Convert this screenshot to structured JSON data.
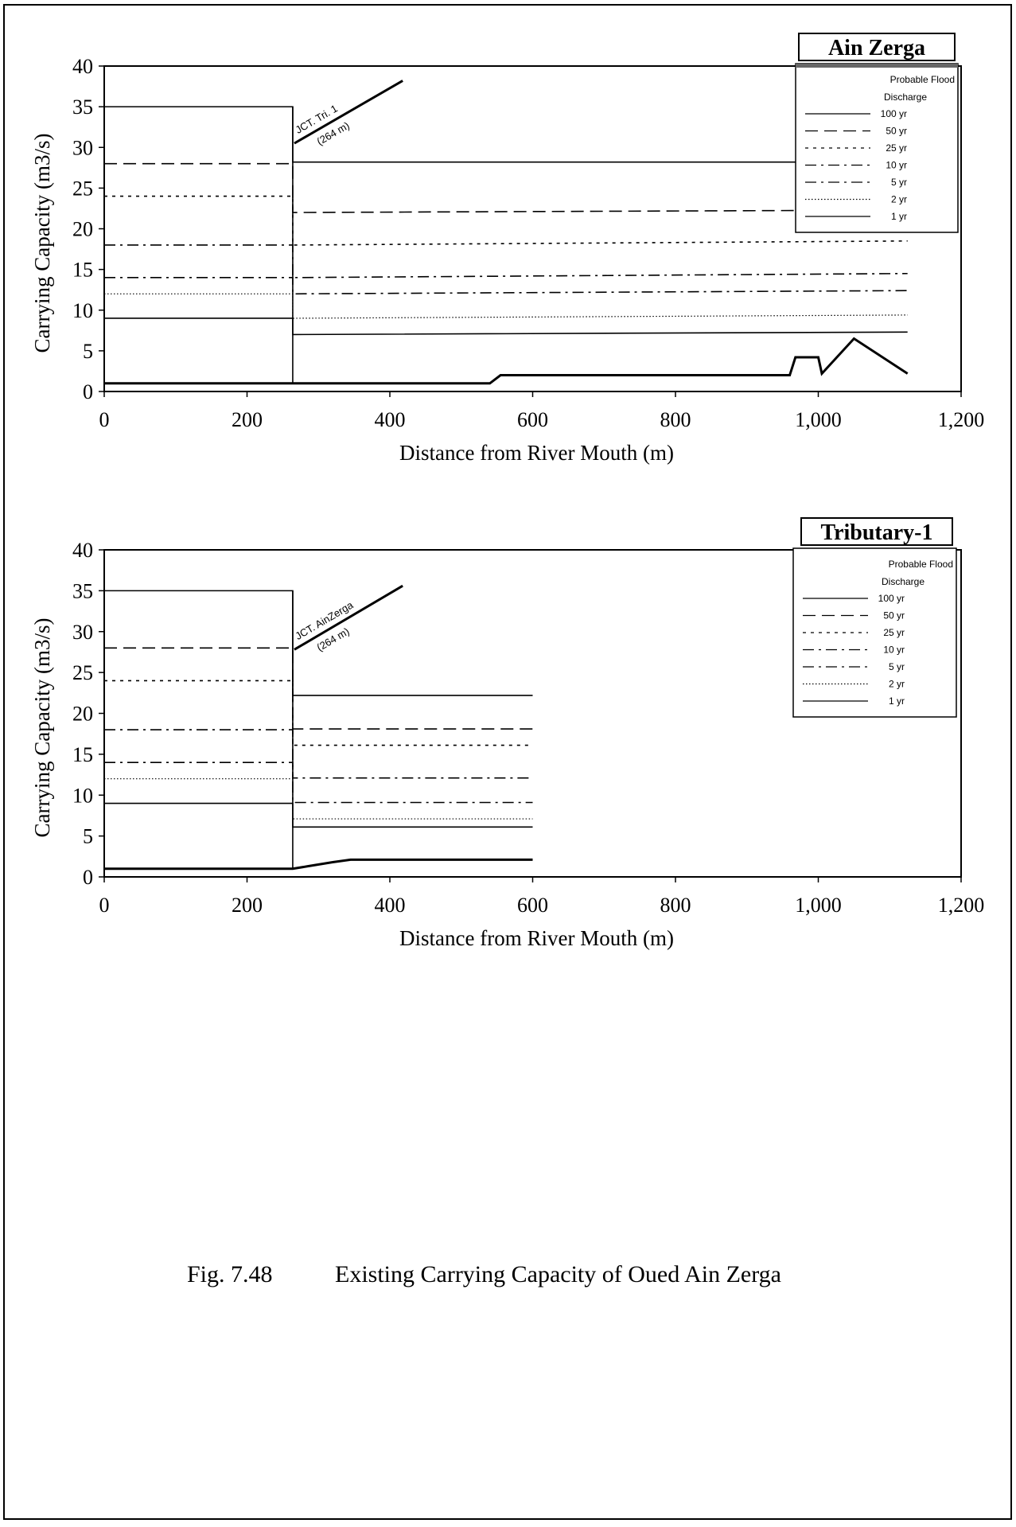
{
  "figure_caption": {
    "number": "Fig. 7.48",
    "text": "Existing Carrying Capacity of Oued Ain Zerga"
  },
  "chart_data": [
    {
      "type": "line",
      "title": "Ain Zerga",
      "xlabel": "Distance from River Mouth (m)",
      "ylabel": "Carrying Capacity (m3/s)",
      "xlim": [
        0,
        1200
      ],
      "ylim": [
        0,
        40
      ],
      "x_ticks": [
        "0",
        "200",
        "400",
        "600",
        "800",
        "1,000",
        "1,200"
      ],
      "y_ticks": [
        "0",
        "5",
        "10",
        "15",
        "20",
        "25",
        "30",
        "35",
        "40"
      ],
      "grid": false,
      "legend_title": [
        "Probable Flood",
        "Discharge"
      ],
      "legend_position": "top-right",
      "annotation": [
        "JCT. Tri. 1",
        "(264 m)"
      ],
      "series": [
        {
          "name": "100 yr",
          "style": "solid",
          "points": [
            [
              0,
              35
            ],
            [
              264,
              35
            ],
            [
              264,
              28.2
            ],
            [
              1125,
              28.2
            ]
          ]
        },
        {
          "name": "50 yr",
          "style": "dash",
          "points": [
            [
              0,
              28
            ],
            [
              264,
              28
            ],
            [
              264,
              22
            ],
            [
              1125,
              22.3
            ]
          ]
        },
        {
          "name": "25 yr",
          "style": "dot",
          "points": [
            [
              0,
              24
            ],
            [
              264,
              24
            ],
            [
              264,
              18
            ],
            [
              1125,
              18.5
            ]
          ]
        },
        {
          "name": "10 yr",
          "style": "dashdot",
          "points": [
            [
              0,
              18
            ],
            [
              264,
              18
            ],
            [
              264,
              14
            ],
            [
              1125,
              14.5
            ]
          ]
        },
        {
          "name": "5 yr",
          "style": "dashdot",
          "points": [
            [
              0,
              14
            ],
            [
              264,
              14
            ],
            [
              264,
              12
            ],
            [
              1125,
              12.4
            ]
          ]
        },
        {
          "name": "2 yr",
          "style": "fine",
          "points": [
            [
              0,
              12
            ],
            [
              264,
              12
            ],
            [
              264,
              9
            ],
            [
              1125,
              9.4
            ]
          ]
        },
        {
          "name": "1 yr",
          "style": "solid",
          "points": [
            [
              0,
              9
            ],
            [
              264,
              9
            ],
            [
              264,
              7
            ],
            [
              1125,
              7.3
            ]
          ]
        }
      ],
      "capacity_line": [
        [
          0,
          1
        ],
        [
          540,
          1
        ],
        [
          555,
          2
        ],
        [
          960,
          2
        ],
        [
          968,
          4.2
        ],
        [
          1000,
          4.2
        ],
        [
          1005,
          2.2
        ],
        [
          1050,
          6.5
        ],
        [
          1125,
          2.2
        ]
      ],
      "junction_x": 264
    },
    {
      "type": "line",
      "title": "Tributary-1",
      "xlabel": "Distance from River Mouth (m)",
      "ylabel": "Carrying Capacity (m3/s)",
      "xlim": [
        0,
        1200
      ],
      "ylim": [
        0,
        40
      ],
      "x_ticks": [
        "0",
        "200",
        "400",
        "600",
        "800",
        "1,000",
        "1,200"
      ],
      "y_ticks": [
        "0",
        "5",
        "10",
        "15",
        "20",
        "25",
        "30",
        "35",
        "40"
      ],
      "grid": false,
      "legend_title": [
        "Probable Flood",
        "Discharge"
      ],
      "legend_position": "top-right",
      "annotation": [
        "JCT. AinZerga",
        "(264 m)"
      ],
      "series": [
        {
          "name": "100 yr",
          "style": "solid",
          "points": [
            [
              0,
              35
            ],
            [
              264,
              35
            ],
            [
              264,
              22.2
            ],
            [
              600,
              22.2
            ]
          ]
        },
        {
          "name": "50 yr",
          "style": "dash",
          "points": [
            [
              0,
              28
            ],
            [
              264,
              28
            ],
            [
              264,
              18.1
            ],
            [
              600,
              18.1
            ]
          ]
        },
        {
          "name": "25 yr",
          "style": "dot",
          "points": [
            [
              0,
              24
            ],
            [
              264,
              24
            ],
            [
              264,
              16.1
            ],
            [
              600,
              16.1
            ]
          ]
        },
        {
          "name": "10 yr",
          "style": "dashdot",
          "points": [
            [
              0,
              18
            ],
            [
              264,
              18
            ],
            [
              264,
              12.1
            ],
            [
              600,
              12.1
            ]
          ]
        },
        {
          "name": "5 yr",
          "style": "dashdot",
          "points": [
            [
              0,
              14
            ],
            [
              264,
              14
            ],
            [
              264,
              9.1
            ],
            [
              600,
              9.1
            ]
          ]
        },
        {
          "name": "2 yr",
          "style": "fine",
          "points": [
            [
              0,
              12
            ],
            [
              264,
              12
            ],
            [
              264,
              7.1
            ],
            [
              600,
              7.1
            ]
          ]
        },
        {
          "name": "1 yr",
          "style": "solid",
          "points": [
            [
              0,
              9
            ],
            [
              264,
              9
            ],
            [
              264,
              6.1
            ],
            [
              600,
              6.1
            ]
          ]
        }
      ],
      "capacity_line": [
        [
          0,
          1
        ],
        [
          264,
          1
        ],
        [
          285,
          1.3
        ],
        [
          320,
          1.8
        ],
        [
          345,
          2.1
        ],
        [
          600,
          2.1
        ]
      ],
      "junction_x": 264
    }
  ]
}
